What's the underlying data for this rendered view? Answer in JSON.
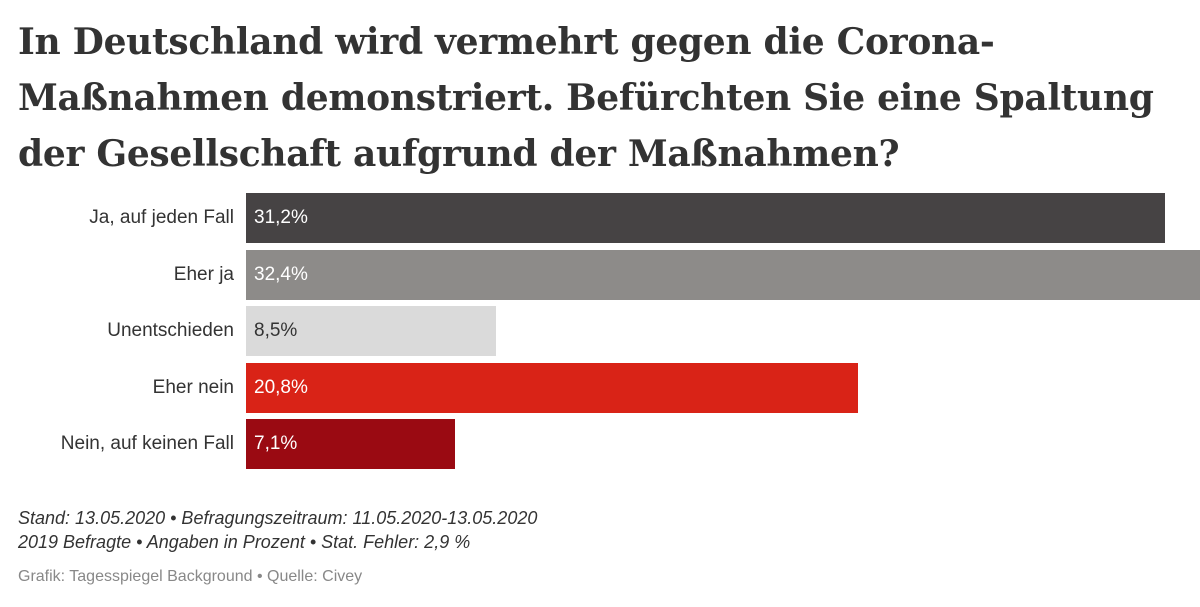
{
  "chart_data": {
    "type": "bar",
    "orientation": "horizontal",
    "title": "In Deutschland wird vermehrt gegen die Corona-Maßnahmen demonstriert. Befürchten Sie eine Spaltung der Gesellschaft aufgrund der Maßnahmen?",
    "categories": [
      "Ja, auf jeden Fall",
      "Eher ja",
      "Unentschieden",
      "Eher nein",
      "Nein, auf keinen Fall"
    ],
    "values": [
      31.2,
      32.4,
      8.5,
      20.8,
      7.1
    ],
    "value_labels": [
      "31,2%",
      "32,4%",
      "8,5%",
      "20,8%",
      "7,1%"
    ],
    "colors": [
      "#464344",
      "#8d8b89",
      "#dadada",
      "#d92317",
      "#9a0a12"
    ],
    "label_colors": [
      "#ffffff",
      "#ffffff",
      "#333333",
      "#ffffff",
      "#ffffff"
    ],
    "xlim": [
      0,
      32.4
    ],
    "xlabel": "",
    "ylabel": "",
    "grid": false
  },
  "footer": {
    "line1": "Stand: 13.05.2020 • Befragungszeitraum: 11.05.2020-13.05.2020",
    "line2": "2019 Befragte • Angaben in Prozent • Stat. Fehler: 2,9 %",
    "source": "Grafik: Tagesspiegel Background • Quelle: Civey"
  }
}
